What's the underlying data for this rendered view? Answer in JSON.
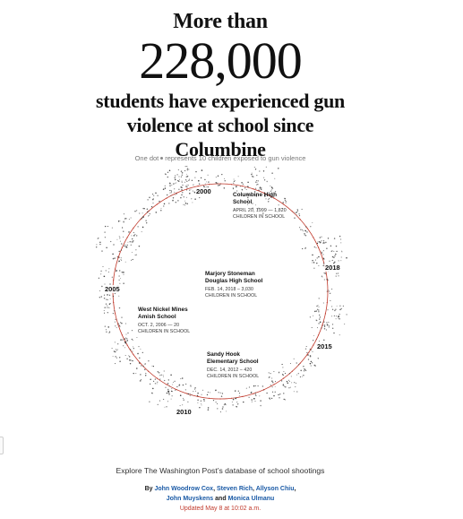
{
  "headline": {
    "line1": "More than",
    "number": "228,000",
    "line2": "students have experienced gun",
    "line3": "violence at school since",
    "line4": "Columbine"
  },
  "legend": {
    "before": "One dot",
    "after": "represents 10 children exposed to gun violence"
  },
  "years": [
    "2000",
    "2018",
    "2005",
    "2015",
    "2010"
  ],
  "annotations": [
    {
      "name1": "Columbine High",
      "name2": "School",
      "date": "April 20, 1999 — 1,820",
      "meta": "Children in school"
    },
    {
      "name1": "Marjory Stoneman",
      "name2": "Douglas High School",
      "date": "Feb. 14, 2018 – 3,030",
      "meta": "Children in school"
    },
    {
      "name1": "West Nickel Mines",
      "name2": "Amish School",
      "date": "Oct. 2, 2006 — 20",
      "meta": "Children in school"
    },
    {
      "name1": "Sandy Hook",
      "name2": "Elementary School",
      "date": "Dec. 14, 2012 – 420",
      "meta": "Children in school"
    }
  ],
  "explore": "Explore The Washington Post’s database of school shootings",
  "byline": {
    "by": "By",
    "author1": "John Woodrow Cox",
    "author2": "Steven Rich",
    "author3": "Allyson Chiu",
    "author4": "John Muyskens",
    "and": "and",
    "author5": "Monica Ulmanu",
    "sep": ","
  },
  "updated": "Updated May 8 at 10:02 a.m.",
  "colors": {
    "ring": "#c0392b",
    "dots": "#333333",
    "link": "#1a5aa6",
    "updated": "#c0392b"
  }
}
